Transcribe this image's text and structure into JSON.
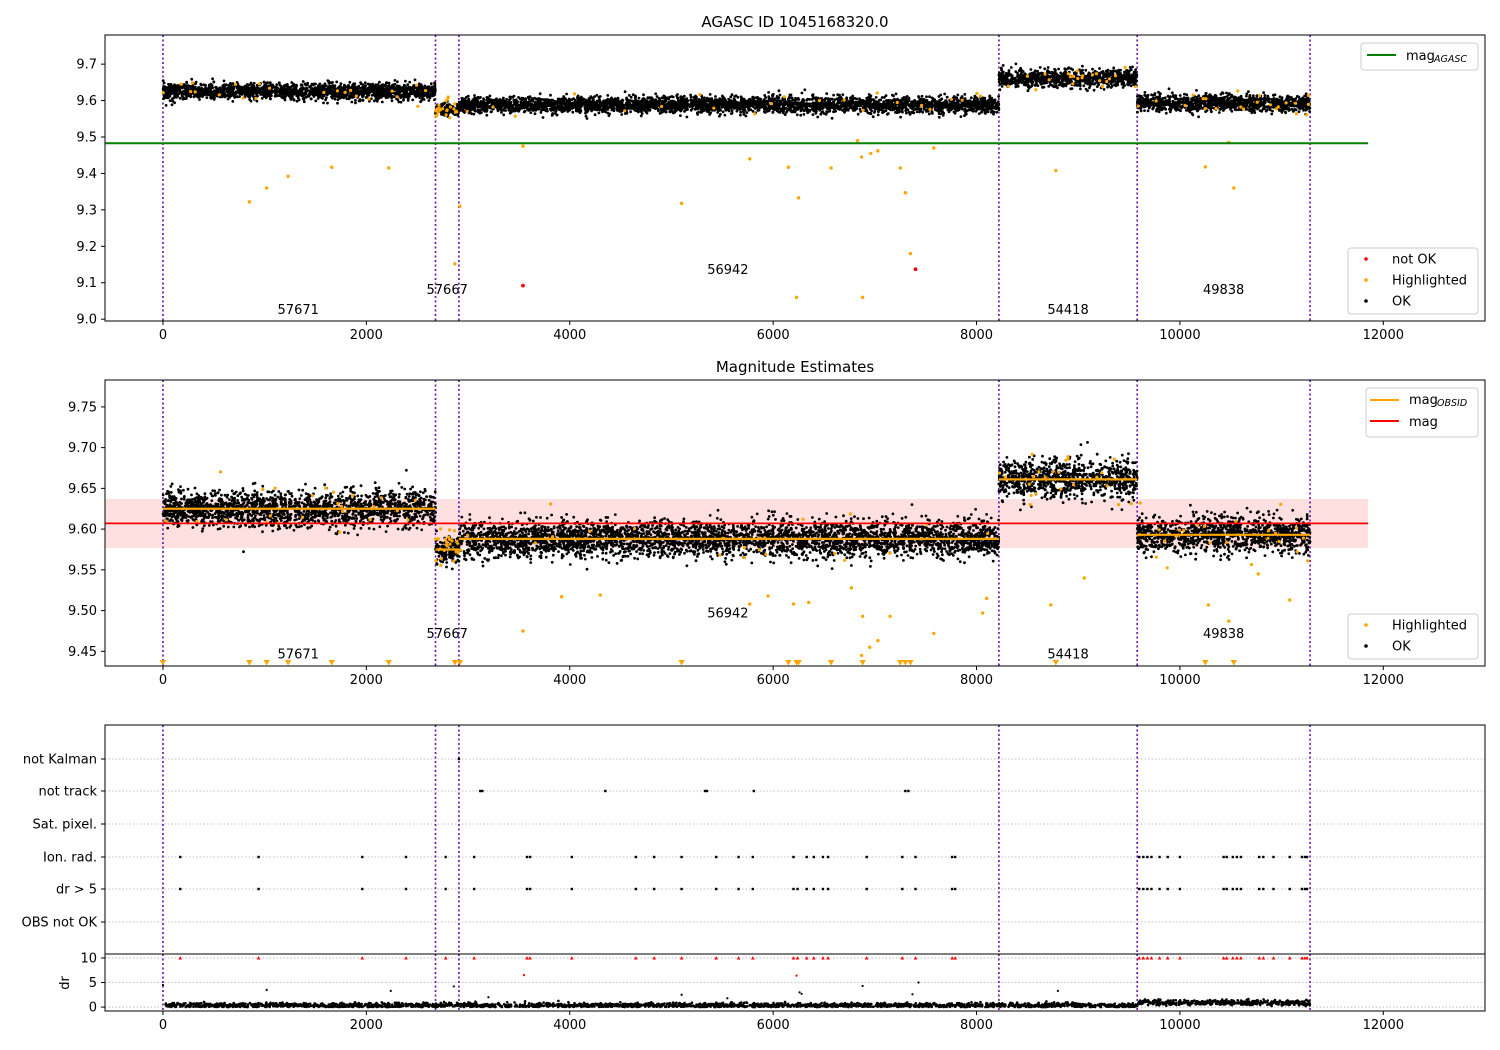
{
  "chart_data": [
    {
      "type": "scatter",
      "title": "AGASC ID 1045168320.0",
      "xlim": [
        -570,
        13000
      ],
      "ylim": [
        8.995,
        9.78
      ],
      "xticks": [
        0,
        2000,
        4000,
        6000,
        8000,
        10000,
        12000
      ],
      "yticks": [
        9.0,
        9.1,
        9.2,
        9.3,
        9.4,
        9.5,
        9.6,
        9.7
      ],
      "ytick_labels": [
        "9.0",
        "9.1",
        "9.2",
        "9.3",
        "9.4",
        "9.5",
        "9.6",
        "9.7"
      ],
      "legend_upper": {
        "placement": "top-right",
        "entries": [
          {
            "name": "mag",
            "sub": "AGASC",
            "color": "#008000"
          }
        ]
      },
      "legend_lower": {
        "placement": "bottom-right",
        "entries": [
          {
            "name": "not OK",
            "color": "#ff0000"
          },
          {
            "name": "Highlighted",
            "color": "#ffa500"
          },
          {
            "name": "OK",
            "color": "#000000"
          }
        ]
      },
      "agasc_mag": 9.483,
      "agasc_xrange": [
        -570,
        11850
      ],
      "vlines": [
        0,
        2680,
        2910,
        8220,
        9580,
        11280
      ],
      "segments": [
        {
          "obsid": "57671",
          "x0": 0,
          "x1": 2680,
          "mean": 9.625,
          "sd": 0.011,
          "label_x": 1330,
          "label_y": 9.027
        },
        {
          "obsid": "57667",
          "x0": 2680,
          "x1": 2910,
          "mean": 9.575,
          "sd": 0.009,
          "label_x": 2795,
          "label_y": 9.082
        },
        {
          "obsid": "56942",
          "x0": 2910,
          "x1": 8220,
          "mean": 9.588,
          "sd": 0.011,
          "label_x": 5555,
          "label_y": 9.137
        },
        {
          "obsid": "54418",
          "x0": 8220,
          "x1": 9580,
          "mean": 9.661,
          "sd": 0.012,
          "label_x": 8900,
          "label_y": 9.027
        },
        {
          "obsid": "49838",
          "x0": 9580,
          "x1": 11280,
          "mean": 9.593,
          "sd": 0.011,
          "label_x": 10430,
          "label_y": 9.082
        }
      ],
      "highlighted_points": [
        [
          850,
          9.322
        ],
        [
          1020,
          9.36
        ],
        [
          1230,
          9.392
        ],
        [
          1660,
          9.417
        ],
        [
          2220,
          9.415
        ],
        [
          2870,
          9.152
        ],
        [
          2920,
          9.31
        ],
        [
          3540,
          9.475
        ],
        [
          5100,
          9.318
        ],
        [
          5770,
          9.44
        ],
        [
          6150,
          9.417
        ],
        [
          6250,
          9.333
        ],
        [
          6230,
          9.06
        ],
        [
          6570,
          9.415
        ],
        [
          6870,
          9.445
        ],
        [
          6880,
          9.06
        ],
        [
          6960,
          9.455
        ],
        [
          7030,
          9.462
        ],
        [
          7300,
          9.347
        ],
        [
          7350,
          9.18
        ],
        [
          7250,
          9.415
        ],
        [
          6830,
          9.49
        ],
        [
          7580,
          9.47
        ],
        [
          8780,
          9.408
        ],
        [
          10250,
          9.418
        ],
        [
          10530,
          9.36
        ],
        [
          10480,
          9.485
        ]
      ],
      "not_ok_points": [
        [
          3540,
          9.092
        ],
        [
          7400,
          9.137
        ]
      ]
    },
    {
      "type": "scatter",
      "title": "Magnitude Estimates",
      "xlim": [
        -570,
        13000
      ],
      "ylim": [
        9.432,
        9.783
      ],
      "xticks": [
        0,
        2000,
        4000,
        6000,
        8000,
        10000,
        12000
      ],
      "yticks": [
        9.45,
        9.5,
        9.55,
        9.6,
        9.65,
        9.7,
        9.75
      ],
      "ytick_labels": [
        "9.45",
        "9.50",
        "9.55",
        "9.60",
        "9.65",
        "9.70",
        "9.75"
      ],
      "legend_upper": {
        "placement": "top-right",
        "entries": [
          {
            "name": "mag",
            "sub": "OBSID",
            "color": "#ffa500"
          },
          {
            "name": "mag",
            "sub": "",
            "color": "#ff0000"
          }
        ]
      },
      "legend_lower": {
        "placement": "bottom-right",
        "entries": [
          {
            "name": "Highlighted",
            "color": "#ffa500"
          },
          {
            "name": "OK",
            "color": "#000000"
          }
        ]
      },
      "mag": 9.607,
      "mag_band": [
        9.577,
        9.637
      ],
      "mag_xrange": [
        -570,
        11850
      ],
      "segment_label_y": [
        9.447,
        9.472,
        9.497,
        9.447,
        9.472
      ],
      "highlighted_points": [
        [
          3540,
          9.475
        ],
        [
          3920,
          9.517
        ],
        [
          4300,
          9.519
        ],
        [
          5770,
          9.508
        ],
        [
          5950,
          9.518
        ],
        [
          6200,
          9.508
        ],
        [
          6350,
          9.51
        ],
        [
          6770,
          9.528
        ],
        [
          6880,
          9.493
        ],
        [
          7150,
          9.493
        ],
        [
          7580,
          9.472
        ],
        [
          8100,
          9.515
        ],
        [
          8060,
          9.497
        ],
        [
          8730,
          9.507
        ],
        [
          9060,
          9.54
        ],
        [
          10280,
          9.507
        ],
        [
          10480,
          9.487
        ],
        [
          10770,
          9.545
        ],
        [
          11080,
          9.513
        ],
        [
          6950,
          9.455
        ],
        [
          7030,
          9.463
        ],
        [
          6870,
          9.445
        ]
      ],
      "clipped_points": [
        0,
        850,
        1020,
        1230,
        1660,
        2220,
        2870,
        2920,
        5100,
        6150,
        6230,
        6250,
        6570,
        6880,
        7250,
        7300,
        7350,
        8780,
        10250,
        10530
      ]
    },
    {
      "type": "scatter",
      "flags_ylabels": [
        "not Kalman",
        "not track",
        "Sat. pixel.",
        "Ion. rad.",
        "dr > 5",
        "OBS not OK"
      ],
      "xticks": [
        0,
        2000,
        4000,
        6000,
        8000,
        10000,
        12000
      ],
      "dr_ylabel": "dr",
      "dr_yticks": [
        0,
        5,
        10
      ],
      "dr_ytick_labels": [
        "0",
        "5",
        "10"
      ],
      "dr_ylim": [
        -0.8,
        10.8
      ],
      "not_kalman_x": [
        2910
      ],
      "not_track_x": [
        3120,
        3140,
        4350,
        5330,
        5350,
        5810,
        7300,
        7330
      ],
      "ion_rad_x": [
        170,
        940,
        1960,
        2390,
        2780,
        3060,
        3580,
        3610,
        4020,
        4650,
        4830,
        5100,
        5440,
        5660,
        5800,
        6200,
        6330,
        6400,
        6490,
        6540,
        6920,
        7270,
        7400,
        7760,
        7790,
        9600,
        9640,
        9680,
        9720,
        9800,
        9880,
        10000,
        10430,
        10460,
        10520,
        10560,
        10600,
        10780,
        10820,
        10920,
        11080,
        11200,
        11230,
        11250
      ],
      "dr5_x": [
        170,
        940,
        1960,
        2390,
        2780,
        3060,
        3580,
        3610,
        4020,
        4650,
        4830,
        5100,
        5440,
        5660,
        5800,
        6200,
        6240,
        6330,
        6400,
        6490,
        6540,
        6920,
        7270,
        7400,
        7760,
        7790,
        9600,
        9640,
        9680,
        9720,
        9800,
        9880,
        10000,
        10430,
        10460,
        10520,
        10560,
        10600,
        10780,
        10820,
        10920,
        11080,
        11200,
        11230,
        11250
      ],
      "dr_outliers": [
        [
          0,
          4.5
        ],
        [
          1020,
          3.5
        ],
        [
          2240,
          3.3
        ],
        [
          2860,
          4.2
        ],
        [
          3550,
          6.5
        ],
        [
          6230,
          6.4
        ],
        [
          6260,
          3
        ],
        [
          6880,
          4.3
        ],
        [
          6280,
          2.7
        ],
        [
          7430,
          5
        ],
        [
          8800,
          3.3
        ],
        [
          7370,
          2.6
        ],
        [
          3200,
          2
        ],
        [
          5100,
          2.5
        ],
        [
          5550,
          1.8
        ]
      ]
    }
  ]
}
